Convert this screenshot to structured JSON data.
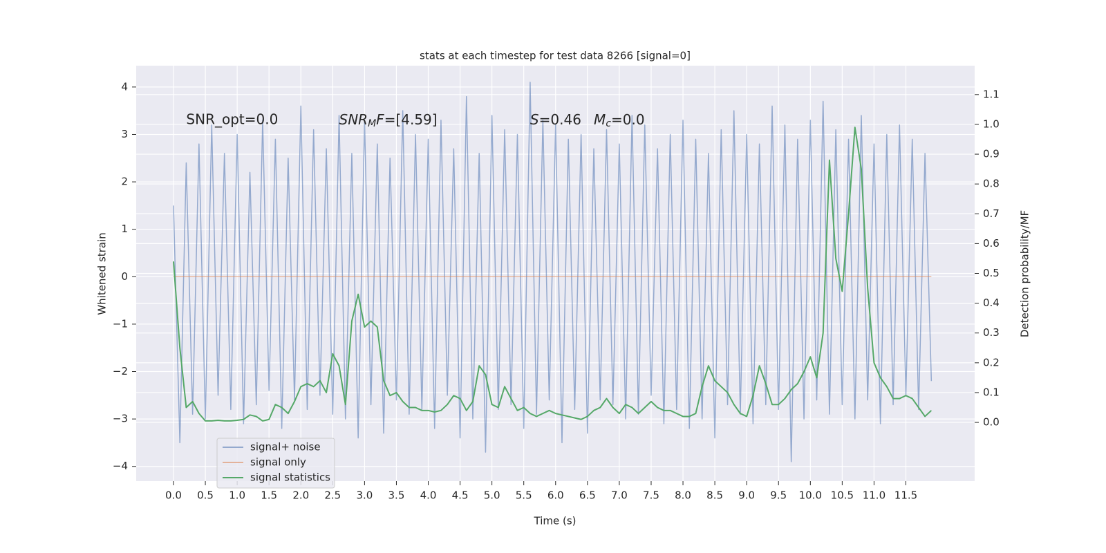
{
  "chart_data": {
    "type": "line",
    "title": "stats at each timestep for test data 8266 [signal=0]",
    "x_label": "Time (s)",
    "y_label": "Whitened strain",
    "y2_label": "Detection probability/MF",
    "annotations": [
      {
        "text": "SNR_opt=0.0",
        "x": 0.2,
        "y": 3.3,
        "math": false
      },
      {
        "text": "SNR_MF=[4.59]",
        "x": 2.6,
        "y": 3.3,
        "math": true
      },
      {
        "text": "S=0.46",
        "x": 5.6,
        "y": 3.3,
        "math": true
      },
      {
        "text": "M_c=0.0",
        "x": 6.6,
        "y": 3.3,
        "math": true
      }
    ],
    "x": [
      0,
      0.1,
      0.2,
      0.3,
      0.4,
      0.5,
      0.6,
      0.7,
      0.8,
      0.9,
      1,
      1.1,
      1.2,
      1.3,
      1.4,
      1.5,
      1.6,
      1.7,
      1.8,
      1.9,
      2,
      2.1,
      2.2,
      2.3,
      2.4,
      2.5,
      2.6,
      2.7,
      2.8,
      2.9,
      3,
      3.1,
      3.2,
      3.3,
      3.4,
      3.5,
      3.6,
      3.7,
      3.8,
      3.9,
      4,
      4.1,
      4.2,
      4.3,
      4.4,
      4.5,
      4.6,
      4.7,
      4.8,
      4.9,
      5,
      5.1,
      5.2,
      5.3,
      5.4,
      5.5,
      5.6,
      5.7,
      5.8,
      5.9,
      6,
      6.1,
      6.2,
      6.3,
      6.4,
      6.5,
      6.6,
      6.7,
      6.8,
      6.9,
      7,
      7.1,
      7.2,
      7.3,
      7.4,
      7.5,
      7.6,
      7.7,
      7.8,
      7.9,
      8,
      8.1,
      8.2,
      8.3,
      8.4,
      8.5,
      8.6,
      8.7,
      8.8,
      8.9,
      9,
      9.1,
      9.2,
      9.3,
      9.4,
      9.5,
      9.6,
      9.7,
      9.8,
      9.9,
      10,
      10.1,
      10.2,
      10.3,
      10.4,
      10.5,
      10.6,
      10.7,
      10.8,
      10.9,
      11,
      11.1,
      11.2,
      11.3,
      11.4,
      11.5,
      11.6,
      11.7,
      11.8,
      11.9
    ],
    "series": [
      {
        "name": "signal+ noise",
        "color": "#4c72b0",
        "opacity": 0.55,
        "axis": "y",
        "values": [
          1.5,
          -3.5,
          2.4,
          -2.9,
          2.8,
          -3.0,
          3.2,
          -2.5,
          2.6,
          -2.8,
          3.0,
          -3.1,
          2.2,
          -2.7,
          3.3,
          -2.4,
          2.9,
          -3.2,
          2.5,
          -2.6,
          3.6,
          -2.8,
          3.1,
          -2.5,
          2.7,
          -2.9,
          3.4,
          -3.0,
          2.6,
          -3.4,
          3.3,
          -2.7,
          2.8,
          -3.3,
          2.5,
          -2.6,
          3.5,
          -2.9,
          3.0,
          -2.8,
          2.9,
          -3.2,
          3.3,
          -2.5,
          2.7,
          -3.4,
          3.8,
          -3.0,
          2.6,
          -3.7,
          3.4,
          -2.8,
          3.1,
          -2.7,
          3.0,
          -3.2,
          4.1,
          -2.9,
          3.3,
          -2.6,
          3.2,
          -3.5,
          2.9,
          -2.8,
          3.0,
          -3.3,
          2.7,
          -2.6,
          3.1,
          -2.7,
          2.8,
          -3.0,
          3.4,
          -2.9,
          3.2,
          -2.5,
          2.7,
          -3.1,
          3.0,
          -2.8,
          3.3,
          -3.2,
          2.9,
          -3.0,
          2.6,
          -3.4,
          3.1,
          -2.7,
          3.5,
          -2.9,
          3.0,
          -3.1,
          2.8,
          -2.7,
          3.6,
          -2.8,
          3.2,
          -3.9,
          2.9,
          -3.0,
          3.3,
          -2.6,
          3.7,
          -2.9,
          3.1,
          -2.7,
          2.9,
          -3.0,
          3.4,
          -2.6,
          2.8,
          -3.1,
          3.0,
          -2.7,
          3.2,
          -2.5,
          2.9,
          -2.8,
          2.6,
          -2.2
        ]
      },
      {
        "name": "signal only",
        "color": "#dd8452",
        "opacity": 0.55,
        "axis": "y",
        "values": [
          0,
          0,
          0,
          0,
          0,
          0,
          0,
          0,
          0,
          0,
          0,
          0,
          0,
          0,
          0,
          0,
          0,
          0,
          0,
          0,
          0,
          0,
          0,
          0,
          0,
          0,
          0,
          0,
          0,
          0,
          0,
          0,
          0,
          0,
          0,
          0,
          0,
          0,
          0,
          0,
          0,
          0,
          0,
          0,
          0,
          0,
          0,
          0,
          0,
          0,
          0,
          0,
          0,
          0,
          0,
          0,
          0,
          0,
          0,
          0,
          0,
          0,
          0,
          0,
          0,
          0,
          0,
          0,
          0,
          0,
          0,
          0,
          0,
          0,
          0,
          0,
          0,
          0,
          0,
          0,
          0,
          0,
          0,
          0,
          0,
          0,
          0,
          0,
          0,
          0,
          0,
          0,
          0,
          0,
          0,
          0,
          0,
          0,
          0,
          0,
          0,
          0,
          0,
          0,
          0,
          0,
          0,
          0,
          0,
          0,
          0,
          0,
          0,
          0,
          0,
          0,
          0,
          0,
          0,
          0
        ]
      },
      {
        "name": "signal statistics",
        "color": "#55a868",
        "opacity": 1,
        "axis": "y2",
        "values": [
          0.54,
          0.25,
          0.05,
          0.07,
          0.03,
          0.005,
          0.005,
          0.007,
          0.005,
          0.005,
          0.007,
          0.01,
          0.025,
          0.02,
          0.005,
          0.01,
          0.06,
          0.05,
          0.03,
          0.07,
          0.12,
          0.13,
          0.12,
          0.14,
          0.1,
          0.23,
          0.19,
          0.06,
          0.34,
          0.43,
          0.32,
          0.34,
          0.32,
          0.14,
          0.09,
          0.1,
          0.07,
          0.05,
          0.05,
          0.04,
          0.04,
          0.035,
          0.04,
          0.06,
          0.09,
          0.08,
          0.04,
          0.07,
          0.19,
          0.16,
          0.06,
          0.05,
          0.12,
          0.08,
          0.04,
          0.05,
          0.03,
          0.02,
          0.03,
          0.04,
          0.03,
          0.025,
          0.02,
          0.015,
          0.01,
          0.02,
          0.04,
          0.05,
          0.08,
          0.05,
          0.03,
          0.06,
          0.05,
          0.03,
          0.05,
          0.07,
          0.05,
          0.04,
          0.04,
          0.03,
          0.02,
          0.02,
          0.03,
          0.12,
          0.19,
          0.14,
          0.12,
          0.1,
          0.06,
          0.03,
          0.02,
          0.09,
          0.19,
          0.13,
          0.06,
          0.06,
          0.08,
          0.11,
          0.13,
          0.17,
          0.22,
          0.15,
          0.3,
          0.88,
          0.55,
          0.44,
          0.7,
          0.99,
          0.85,
          0.45,
          0.2,
          0.15,
          0.12,
          0.08,
          0.08,
          0.09,
          0.08,
          0.05,
          0.02,
          0.04
        ]
      }
    ],
    "xlim": [
      -0.586,
      12.58
    ],
    "ylim": [
      -4.31,
      4.45
    ],
    "y2lim": [
      -0.197,
      1.197
    ],
    "xticks": [
      {
        "value": 0,
        "label": "0.0"
      },
      0.5,
      {
        "value": 1,
        "label": "1.0"
      },
      1.5,
      {
        "value": 2,
        "label": "2.0"
      },
      2.5,
      {
        "value": 3,
        "label": "3.0"
      },
      3.5,
      {
        "value": 4,
        "label": "4.0"
      },
      4.5,
      {
        "value": 5,
        "label": "5.0"
      },
      5.5,
      {
        "value": 6,
        "label": "6.0"
      },
      6.5,
      {
        "value": 7,
        "label": "7.0"
      },
      7.5,
      {
        "value": 8,
        "label": "8.0"
      },
      8.5,
      {
        "value": 9,
        "label": "9.0"
      },
      9.5,
      {
        "value": 10,
        "label": "10.0"
      },
      10.5,
      {
        "value": 11,
        "label": "11.0"
      },
      11.5
    ],
    "yticks": [
      {
        "value": -4,
        "label": "−4"
      },
      {
        "value": -3,
        "label": "−3"
      },
      {
        "value": -2,
        "label": "−2"
      },
      {
        "value": -1,
        "label": "−1"
      },
      0,
      1,
      2,
      3,
      4
    ],
    "y2ticks": [
      {
        "value": 0,
        "label": "0.0"
      },
      0.1,
      0.2,
      0.3,
      0.4,
      0.5,
      0.6,
      0.7,
      0.8,
      0.9,
      {
        "value": 1,
        "label": "1.0"
      },
      1.1
    ],
    "grid": true,
    "legend": "lower left"
  }
}
